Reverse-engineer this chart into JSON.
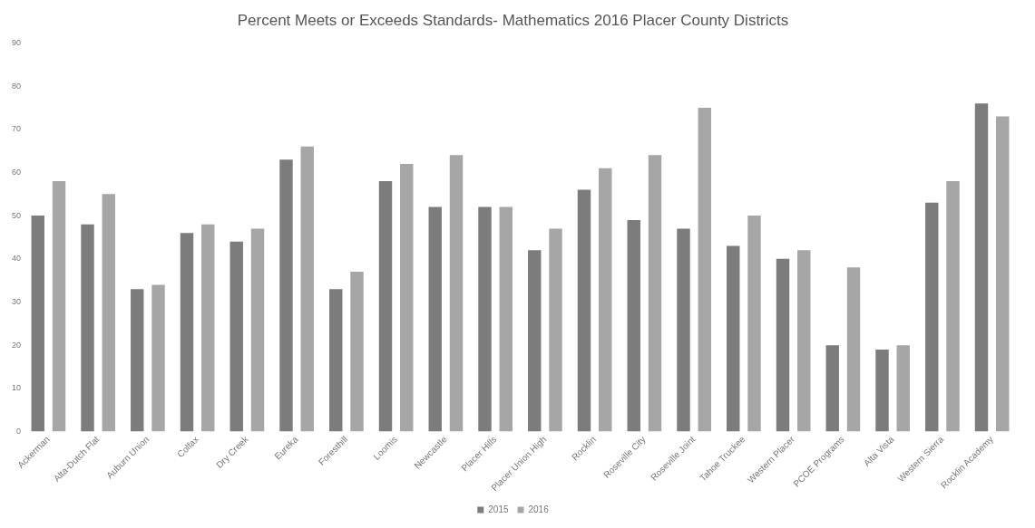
{
  "chart_data": {
    "type": "bar",
    "title": "Percent Meets or Exceeds Standards- Mathematics 2016 Placer County Districts",
    "categories": [
      "Ackerman",
      "Alta-Dutch Flat",
      "Auburn Union",
      "Colfax",
      "Dry Creek",
      "Eureka",
      "Foresthill",
      "Loomis",
      "Newcastle",
      "Placer Hills",
      "Placer Union High",
      "Rocklin",
      "Roseville City",
      "Roseville Joint",
      "Tahoe Truckee",
      "Western Placer",
      "PCOE Programs",
      "Alta Vista",
      "Western Sierra",
      "Rocklin Academy"
    ],
    "series": [
      {
        "name": "2015",
        "color": "#7c7c7c",
        "values": [
          50,
          48,
          33,
          46,
          44,
          63,
          33,
          58,
          52,
          52,
          42,
          56,
          49,
          47,
          43,
          40,
          20,
          19,
          53,
          76
        ]
      },
      {
        "name": "2016",
        "color": "#a6a6a6",
        "values": [
          58,
          55,
          34,
          48,
          47,
          66,
          37,
          62,
          64,
          52,
          47,
          61,
          64,
          75,
          50,
          42,
          38,
          20,
          58,
          73
        ]
      }
    ],
    "ylim": [
      0,
      90
    ],
    "yticks": [
      0,
      10,
      20,
      30,
      40,
      50,
      60,
      70,
      80,
      90
    ],
    "grid": false,
    "legend": "bottom"
  }
}
